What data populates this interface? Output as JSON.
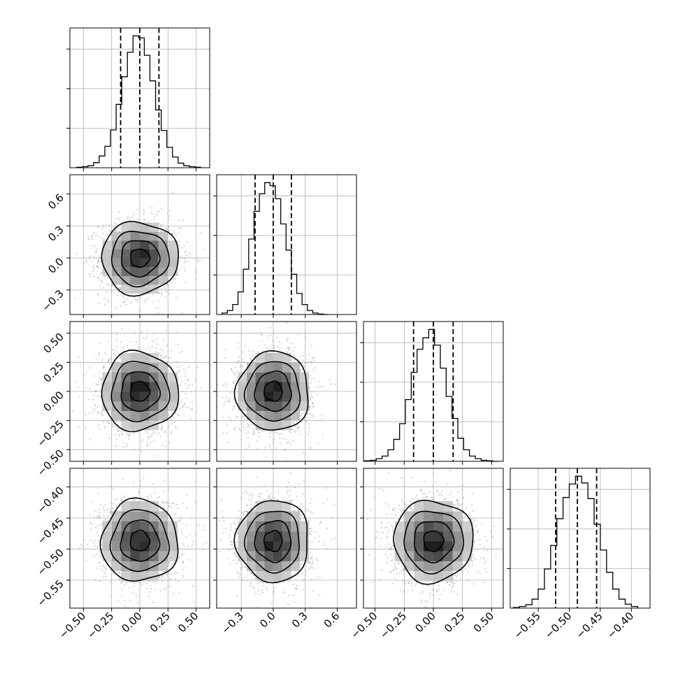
{
  "chart_data": {
    "type": "corner",
    "title": "",
    "parameters": [
      {
        "index": 0,
        "median": 0.0,
        "q16": -0.17,
        "q84": 0.17,
        "sigma": 0.17,
        "range": [
          -0.62,
          0.62
        ],
        "ticks": [
          -0.5,
          -0.25,
          0.0,
          0.25,
          0.5
        ],
        "tick_labels": [
          "−0.50",
          "−0.25",
          "0.00",
          "0.25",
          "0.50"
        ]
      },
      {
        "index": 1,
        "median": 0.0,
        "q16": -0.17,
        "q84": 0.17,
        "sigma": 0.17,
        "range": [
          -0.53,
          0.78
        ],
        "ticks": [
          -0.3,
          0.0,
          0.3,
          0.6
        ],
        "tick_labels": [
          "−0.3",
          "0.0",
          "0.3",
          "0.6"
        ]
      },
      {
        "index": 2,
        "median": 0.0,
        "q16": -0.17,
        "q84": 0.17,
        "sigma": 0.17,
        "range": [
          -0.6,
          0.6
        ],
        "ticks": [
          -0.5,
          -0.25,
          0.0,
          0.25,
          0.5
        ],
        "tick_labels": [
          "−0.50",
          "−0.25",
          "0.00",
          "0.25",
          "0.50"
        ]
      },
      {
        "index": 3,
        "median": -0.487,
        "q16": -0.522,
        "q84": -0.456,
        "sigma": 0.033,
        "range": [
          -0.595,
          -0.37
        ],
        "ticks": [
          -0.55,
          -0.5,
          -0.45,
          -0.4
        ],
        "tick_labels": [
          "−0.55",
          "−0.50",
          "−0.45",
          "−0.40"
        ]
      }
    ],
    "histograms": [
      {
        "param": 0,
        "bin_edges": [
          -0.56,
          -0.51,
          -0.46,
          -0.41,
          -0.36,
          -0.31,
          -0.26,
          -0.21,
          -0.16,
          -0.11,
          -0.06,
          -0.01,
          0.04,
          0.09,
          0.14,
          0.19,
          0.24,
          0.29,
          0.34,
          0.39,
          0.44,
          0.49,
          0.54
        ],
        "counts": [
          1,
          2,
          4,
          10,
          23,
          42,
          74,
          124,
          178,
          226,
          258,
          254,
          220,
          170,
          113,
          73,
          40,
          21,
          9,
          4,
          2,
          1
        ]
      },
      {
        "param": 1,
        "bin_edges": [
          -0.48,
          -0.43,
          -0.38,
          -0.33,
          -0.28,
          -0.23,
          -0.18,
          -0.13,
          -0.08,
          -0.03,
          0.02,
          0.07,
          0.12,
          0.17,
          0.22,
          0.27,
          0.32,
          0.37,
          0.42,
          0.47,
          0.52
        ],
        "counts": [
          3,
          8,
          20,
          45,
          90,
          150,
          205,
          240,
          262,
          256,
          230,
          180,
          128,
          80,
          42,
          20,
          8,
          3,
          1,
          0
        ]
      },
      {
        "param": 2,
        "bin_edges": [
          -0.59,
          -0.54,
          -0.49,
          -0.44,
          -0.39,
          -0.34,
          -0.29,
          -0.24,
          -0.19,
          -0.14,
          -0.09,
          -0.04,
          0.01,
          0.06,
          0.11,
          0.16,
          0.21,
          0.26,
          0.31,
          0.36,
          0.41,
          0.46,
          0.51,
          0.56
        ],
        "counts": [
          1,
          2,
          5,
          10,
          22,
          42,
          72,
          118,
          170,
          214,
          236,
          252,
          222,
          178,
          124,
          82,
          44,
          22,
          10,
          5,
          2,
          1,
          0
        ]
      },
      {
        "param": 3,
        "bin_edges": [
          -0.59,
          -0.58,
          -0.57,
          -0.56,
          -0.55,
          -0.54,
          -0.53,
          -0.52,
          -0.51,
          -0.5,
          -0.49,
          -0.48,
          -0.47,
          -0.46,
          -0.45,
          -0.44,
          -0.43,
          -0.42,
          -0.41,
          -0.4,
          -0.39
        ],
        "counts": [
          1,
          3,
          6,
          16,
          34,
          70,
          112,
          160,
          198,
          222,
          236,
          224,
          196,
          150,
          104,
          64,
          34,
          16,
          7,
          3
        ]
      }
    ],
    "contour_levels_sigma": [
      0.5,
      1.0,
      1.5,
      2.0
    ],
    "scatter_samples": 1600,
    "grid": true,
    "legend": "none"
  }
}
